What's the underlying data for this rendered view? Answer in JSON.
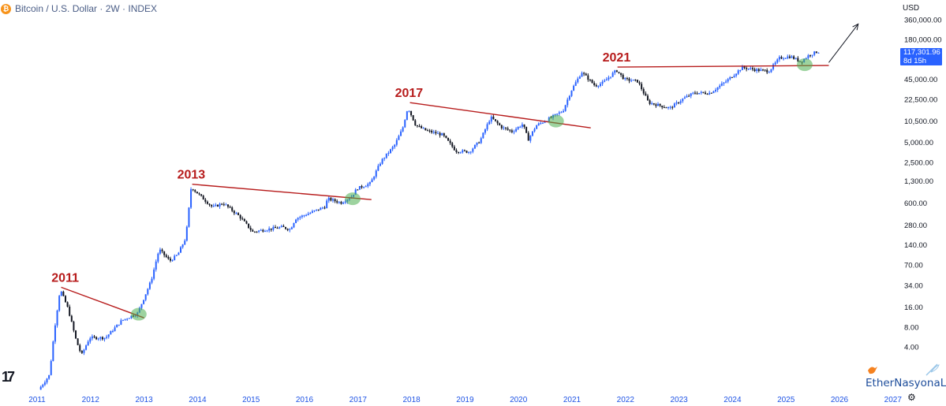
{
  "header": {
    "title": "Bitcoin / U.S. Dollar · 2W · INDEX",
    "icon": "bitcoin-icon",
    "icon_glyph": "₿"
  },
  "currency_label": "USD",
  "price_badge": {
    "price": "117,301.96",
    "countdown": "8d 15h",
    "color": "#2962ff"
  },
  "watermark": {
    "text": "EtherNasyonaL",
    "icons": [
      "bird-icon",
      "feather-icon"
    ]
  },
  "settings_icon": "gear-icon",
  "chart_data": {
    "type": "candlestick",
    "symbol": "BTCUSD",
    "interval": "2W",
    "y_scale": "log",
    "y_ticks": [
      {
        "v": 360000,
        "label": "360,000.00"
      },
      {
        "v": 180000,
        "label": "180,000.00"
      },
      {
        "v": 45000,
        "label": "45,000.00"
      },
      {
        "v": 22500,
        "label": "22,500.00"
      },
      {
        "v": 10500,
        "label": "10,500.00"
      },
      {
        "v": 5000,
        "label": "5,000.00"
      },
      {
        "v": 2500,
        "label": "2,500.00"
      },
      {
        "v": 1300,
        "label": "1,300.00"
      },
      {
        "v": 600,
        "label": "600.00"
      },
      {
        "v": 280,
        "label": "280.00"
      },
      {
        "v": 140,
        "label": "140.00"
      },
      {
        "v": 70,
        "label": "70.00"
      },
      {
        "v": 34,
        "label": "34.00"
      },
      {
        "v": 16,
        "label": "16.00"
      },
      {
        "v": 8,
        "label": "8.00"
      },
      {
        "v": 4,
        "label": "4.00"
      }
    ],
    "x_ticks": [
      "2011",
      "2012",
      "2013",
      "2014",
      "2015",
      "2016",
      "2017",
      "2018",
      "2019",
      "2020",
      "2021",
      "2022",
      "2023",
      "2024",
      "2025",
      "2026",
      "2027"
    ],
    "x_range": [
      2011.0,
      2028.0
    ],
    "price_path": [
      [
        2011.05,
        0.9
      ],
      [
        2011.25,
        1.5
      ],
      [
        2011.35,
        8
      ],
      [
        2011.45,
        30
      ],
      [
        2011.6,
        15
      ],
      [
        2011.75,
        5
      ],
      [
        2011.85,
        3
      ],
      [
        2012.0,
        5.5
      ],
      [
        2012.3,
        5.5
      ],
      [
        2012.6,
        10
      ],
      [
        2012.9,
        13
      ],
      [
        2013.15,
        40
      ],
      [
        2013.3,
        120
      ],
      [
        2013.5,
        80
      ],
      [
        2013.65,
        100
      ],
      [
        2013.8,
        180
      ],
      [
        2013.9,
        1050
      ],
      [
        2014.05,
        800
      ],
      [
        2014.3,
        520
      ],
      [
        2014.5,
        600
      ],
      [
        2014.8,
        380
      ],
      [
        2015.05,
        220
      ],
      [
        2015.3,
        240
      ],
      [
        2015.6,
        260
      ],
      [
        2015.75,
        240
      ],
      [
        2015.85,
        350
      ],
      [
        2016.1,
        420
      ],
      [
        2016.4,
        530
      ],
      [
        2016.45,
        700
      ],
      [
        2016.7,
        610
      ],
      [
        2016.9,
        760
      ],
      [
        2017.0,
        1000
      ],
      [
        2017.25,
        1200
      ],
      [
        2017.45,
        2600
      ],
      [
        2017.7,
        4500
      ],
      [
        2017.85,
        8000
      ],
      [
        2017.95,
        17000
      ],
      [
        2018.1,
        9000
      ],
      [
        2018.3,
        7500
      ],
      [
        2018.6,
        6500
      ],
      [
        2018.85,
        3700
      ],
      [
        2019.1,
        3600
      ],
      [
        2019.3,
        5300
      ],
      [
        2019.5,
        12000
      ],
      [
        2019.7,
        8500
      ],
      [
        2019.9,
        7300
      ],
      [
        2020.1,
        9500
      ],
      [
        2020.2,
        5500
      ],
      [
        2020.35,
        9000
      ],
      [
        2020.6,
        11500
      ],
      [
        2020.85,
        15000
      ],
      [
        2021.0,
        30000
      ],
      [
        2021.2,
        58000
      ],
      [
        2021.45,
        36000
      ],
      [
        2021.6,
        40000
      ],
      [
        2021.85,
        62000
      ],
      [
        2022.0,
        45000
      ],
      [
        2022.25,
        42000
      ],
      [
        2022.45,
        20000
      ],
      [
        2022.85,
        16500
      ],
      [
        2023.1,
        23000
      ],
      [
        2023.3,
        28000
      ],
      [
        2023.6,
        28000
      ],
      [
        2023.9,
        42000
      ],
      [
        2024.2,
        68000
      ],
      [
        2024.5,
        62000
      ],
      [
        2024.7,
        60000
      ],
      [
        2024.9,
        95000
      ],
      [
        2025.1,
        100000
      ],
      [
        2025.3,
        83000
      ],
      [
        2025.45,
        105000
      ],
      [
        2025.6,
        118000
      ]
    ],
    "annotations": [
      {
        "label": "2011",
        "year": 2011.55,
        "price": 32,
        "color": "#b71c1c"
      },
      {
        "label": "2013",
        "year": 2013.9,
        "price": 1160,
        "color": "#b71c1c"
      },
      {
        "label": "2017",
        "year": 2017.97,
        "price": 20000,
        "color": "#b71c1c"
      },
      {
        "label": "2021",
        "year": 2021.85,
        "price": 69000,
        "color": "#b71c1c"
      }
    ],
    "trendlines": [
      {
        "from": [
          2011.45,
          32
        ],
        "to": [
          2013.0,
          11
        ],
        "color": "#b71c1c"
      },
      {
        "from": [
          2013.9,
          1160
        ],
        "to": [
          2017.25,
          680
        ],
        "color": "#b71c1c"
      },
      {
        "from": [
          2017.97,
          20000
        ],
        "to": [
          2021.35,
          8300
        ],
        "color": "#b71c1c"
      },
      {
        "from": [
          2021.85,
          69000
        ],
        "to": [
          2025.8,
          73000
        ],
        "color": "#b71c1c"
      }
    ],
    "breakout_markers": [
      {
        "year": 2012.9,
        "price": 12.5
      },
      {
        "year": 2016.9,
        "price": 700
      },
      {
        "year": 2020.7,
        "price": 10500
      },
      {
        "year": 2025.35,
        "price": 75000
      }
    ],
    "projection_arrow": {
      "from": [
        2025.8,
        81000
      ],
      "to": [
        2026.35,
        310000
      ]
    },
    "colors": {
      "up": "#2962ff",
      "down": "#131722",
      "axis_text": "#1e53e5",
      "price_text": "#131722",
      "marker": "#4caf50"
    }
  }
}
